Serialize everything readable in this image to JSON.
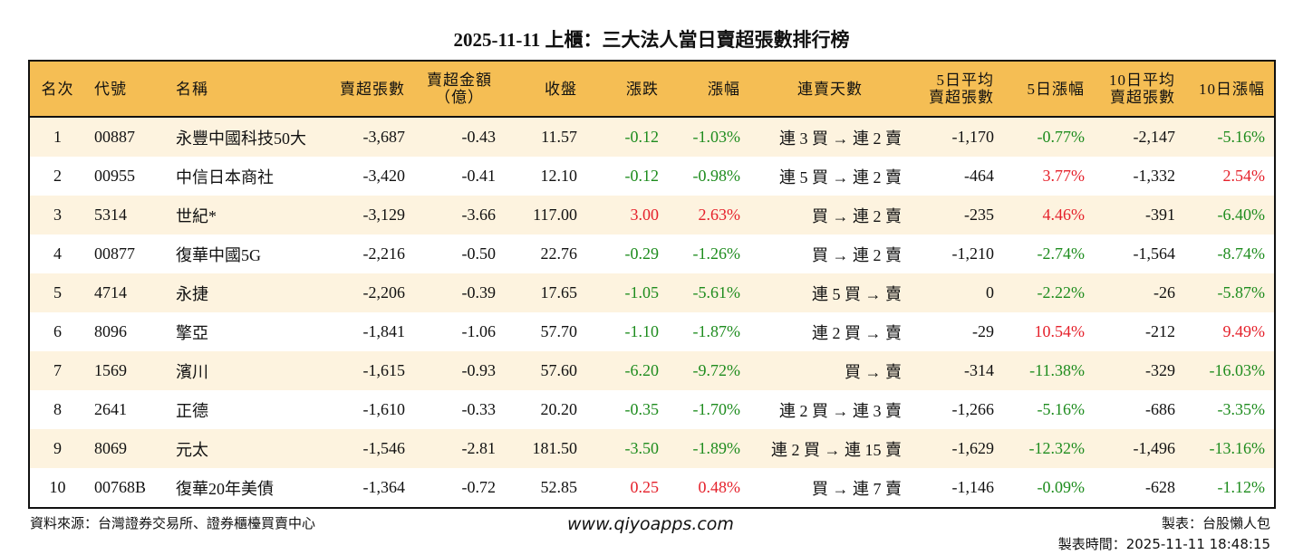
{
  "title": "2025-11-11 上櫃：三大法人當日賣超張數排行榜",
  "colors": {
    "header_bg": "#F5BE54",
    "row_alt_bg": "#FDF3DF",
    "down": "#1E8C1E",
    "up": "#E5212B"
  },
  "headers": [
    "名次",
    "代號",
    "名稱",
    "賣超張數",
    "賣超金額\n（億）",
    "收盤",
    "漲跌",
    "漲幅",
    "連賣天數",
    "5日平均\n賣超張數",
    "5日漲幅",
    "10日平均\n賣超張數",
    "10日漲幅"
  ],
  "rows": [
    [
      "1",
      "00887",
      "永豐中國科技50大",
      "-3,687",
      "-0.43",
      "11.57",
      "-0.12",
      "-1.03%",
      "連 3 買 → 連 2 賣",
      "-1,170",
      "-0.77%",
      "-2,147",
      "-5.16%"
    ],
    [
      "2",
      "00955",
      "中信日本商社",
      "-3,420",
      "-0.41",
      "12.10",
      "-0.12",
      "-0.98%",
      "連 5 買 → 連 2 賣",
      "-464",
      "3.77%",
      "-1,332",
      "2.54%"
    ],
    [
      "3",
      "5314",
      "世紀*",
      "-3,129",
      "-3.66",
      "117.00",
      "3.00",
      "2.63%",
      "買 → 連 2 賣",
      "-235",
      "4.46%",
      "-391",
      "-6.40%"
    ],
    [
      "4",
      "00877",
      "復華中國5G",
      "-2,216",
      "-0.50",
      "22.76",
      "-0.29",
      "-1.26%",
      "買 → 連 2 賣",
      "-1,210",
      "-2.74%",
      "-1,564",
      "-8.74%"
    ],
    [
      "5",
      "4714",
      "永捷",
      "-2,206",
      "-0.39",
      "17.65",
      "-1.05",
      "-5.61%",
      "連 5 買 → 賣",
      "0",
      "-2.22%",
      "-26",
      "-5.87%"
    ],
    [
      "6",
      "8096",
      "擎亞",
      "-1,841",
      "-1.06",
      "57.70",
      "-1.10",
      "-1.87%",
      "連 2 買 → 賣",
      "-29",
      "10.54%",
      "-212",
      "9.49%"
    ],
    [
      "7",
      "1569",
      "濱川",
      "-1,615",
      "-0.93",
      "57.60",
      "-6.20",
      "-9.72%",
      "買 → 賣",
      "-314",
      "-11.38%",
      "-329",
      "-16.03%"
    ],
    [
      "8",
      "2641",
      "正德",
      "-1,610",
      "-0.33",
      "20.20",
      "-0.35",
      "-1.70%",
      "連 2 買 → 連 3 賣",
      "-1,266",
      "-5.16%",
      "-686",
      "-3.35%"
    ],
    [
      "9",
      "8069",
      "元太",
      "-1,546",
      "-2.81",
      "181.50",
      "-3.50",
      "-1.89%",
      "連 2 買 → 連 15 賣",
      "-1,629",
      "-12.32%",
      "-1,496",
      "-13.16%"
    ],
    [
      "10",
      "00768B",
      "復華20年美債",
      "-1,364",
      "-0.72",
      "52.85",
      "0.25",
      "0.48%",
      "買 → 連 7 賣",
      "-1,146",
      "-0.09%",
      "-628",
      "-1.12%"
    ]
  ],
  "footer": {
    "source": "資料來源：台灣證券交易所、證券櫃檯買賣中心",
    "website": "www.qiyoapps.com",
    "maker": "製表：台股懶人包",
    "made_time": "製表時間：2025-11-11 18:48:15"
  }
}
